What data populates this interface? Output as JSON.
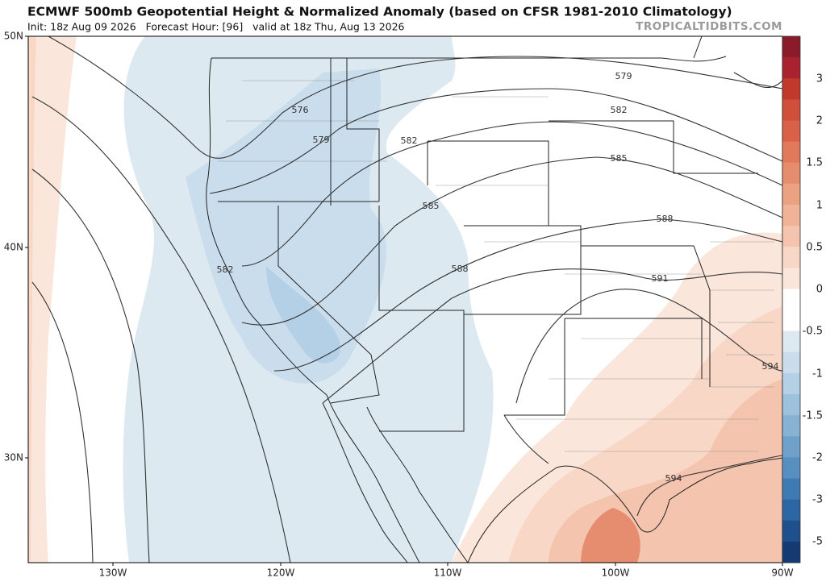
{
  "header": {
    "title": "ECMWF 500mb Geopotential Height & Normalized Anomaly (based on CFSR 1981-2010 Climatology)",
    "subtitle": "Init: 18z Aug 09 2026   Forecast Hour: [96]   valid at 18z Thu, Aug 13 2026",
    "watermark": "TROPICALTIDBITS.COM"
  },
  "map": {
    "lat_labels": [
      "50N",
      "40N",
      "30N"
    ],
    "lon_labels": [
      "130W",
      "120W",
      "110W",
      "100W",
      "90W"
    ],
    "contour_labels": [
      "576",
      "579",
      "579",
      "582",
      "582",
      "582",
      "585",
      "585",
      "588",
      "588",
      "591",
      "594",
      "594"
    ]
  },
  "colorbar": {
    "labels": [
      "3",
      "2",
      "1.5",
      "1",
      "0.5",
      "0",
      "-0.5",
      "-1",
      "-1.5",
      "-2",
      "-3",
      "-5"
    ],
    "colors": [
      "#8b1a2b",
      "#a8222f",
      "#c0392b",
      "#cf4f3a",
      "#d86147",
      "#e07a5a",
      "#e58d6e",
      "#eba283",
      "#f0b398",
      "#f4c4ae",
      "#f8d7c6",
      "#fbe6db",
      "#ffffff",
      "#ffffff",
      "#dde9f1",
      "#c9dded",
      "#b4d0e6",
      "#9ec2de",
      "#87b2d4",
      "#6fa1ca",
      "#568fc0",
      "#3f7bb3",
      "#2d67a3",
      "#1f4f8c",
      "#153a73"
    ]
  }
}
